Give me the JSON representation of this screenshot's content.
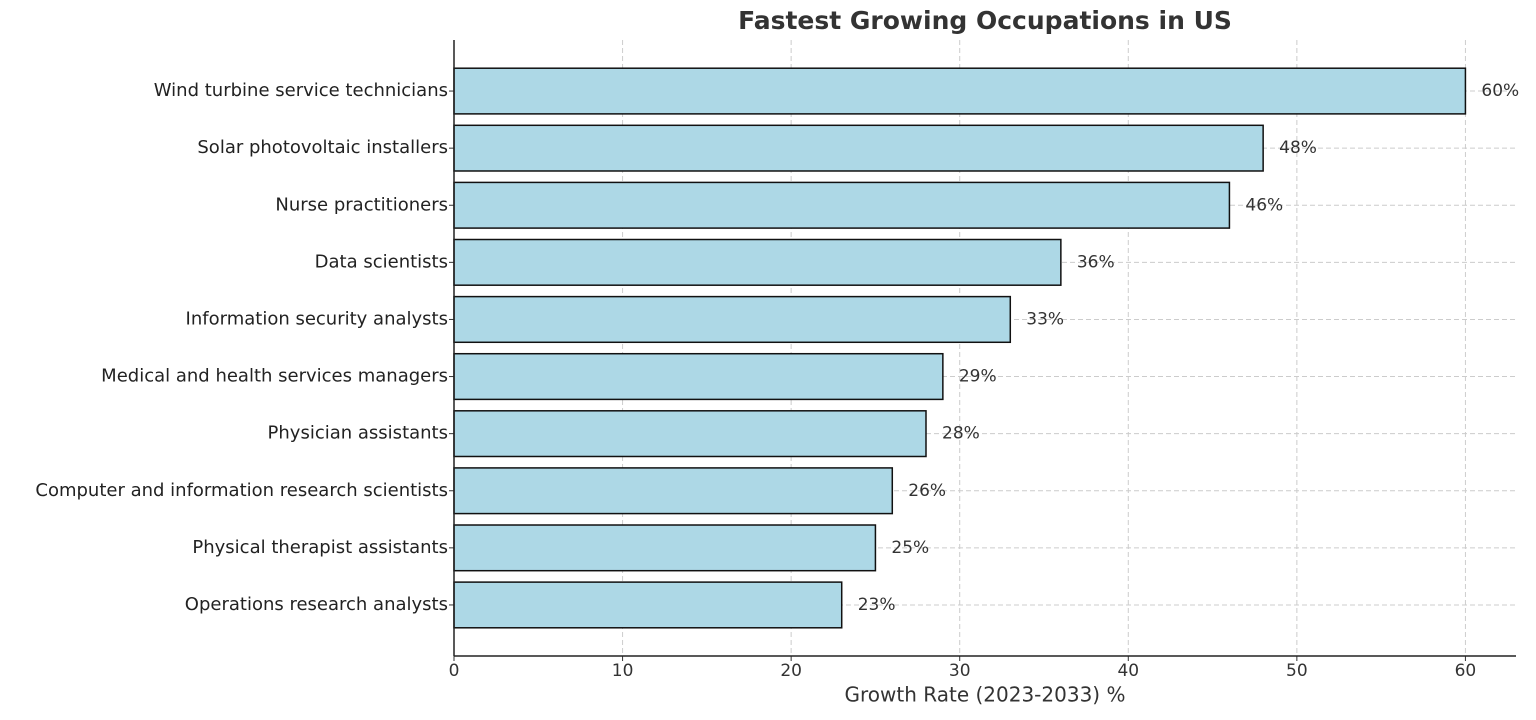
{
  "chart_data": {
    "type": "barh",
    "title": "Fastest Growing Occupations in US",
    "xlabel": "Growth Rate (2023-2033) %",
    "categories": [
      "Wind turbine service technicians",
      "Solar photovoltaic installers",
      "Nurse practitioners",
      "Data scientists",
      "Information security analysts",
      "Medical and health services managers",
      "Physician assistants",
      "Computer and information research scientists",
      "Physical therapist assistants",
      "Operations research analysts"
    ],
    "values": [
      60,
      48,
      46,
      36,
      33,
      29,
      28,
      26,
      25,
      23
    ],
    "value_labels": [
      "60%",
      "48%",
      "46%",
      "36%",
      "33%",
      "29%",
      "28%",
      "26%",
      "25%",
      "23%"
    ],
    "color": "#add8e6",
    "xlim": [
      0,
      63
    ],
    "xticks": [
      0,
      10,
      20,
      30,
      40,
      50,
      60
    ],
    "grid": true
  }
}
